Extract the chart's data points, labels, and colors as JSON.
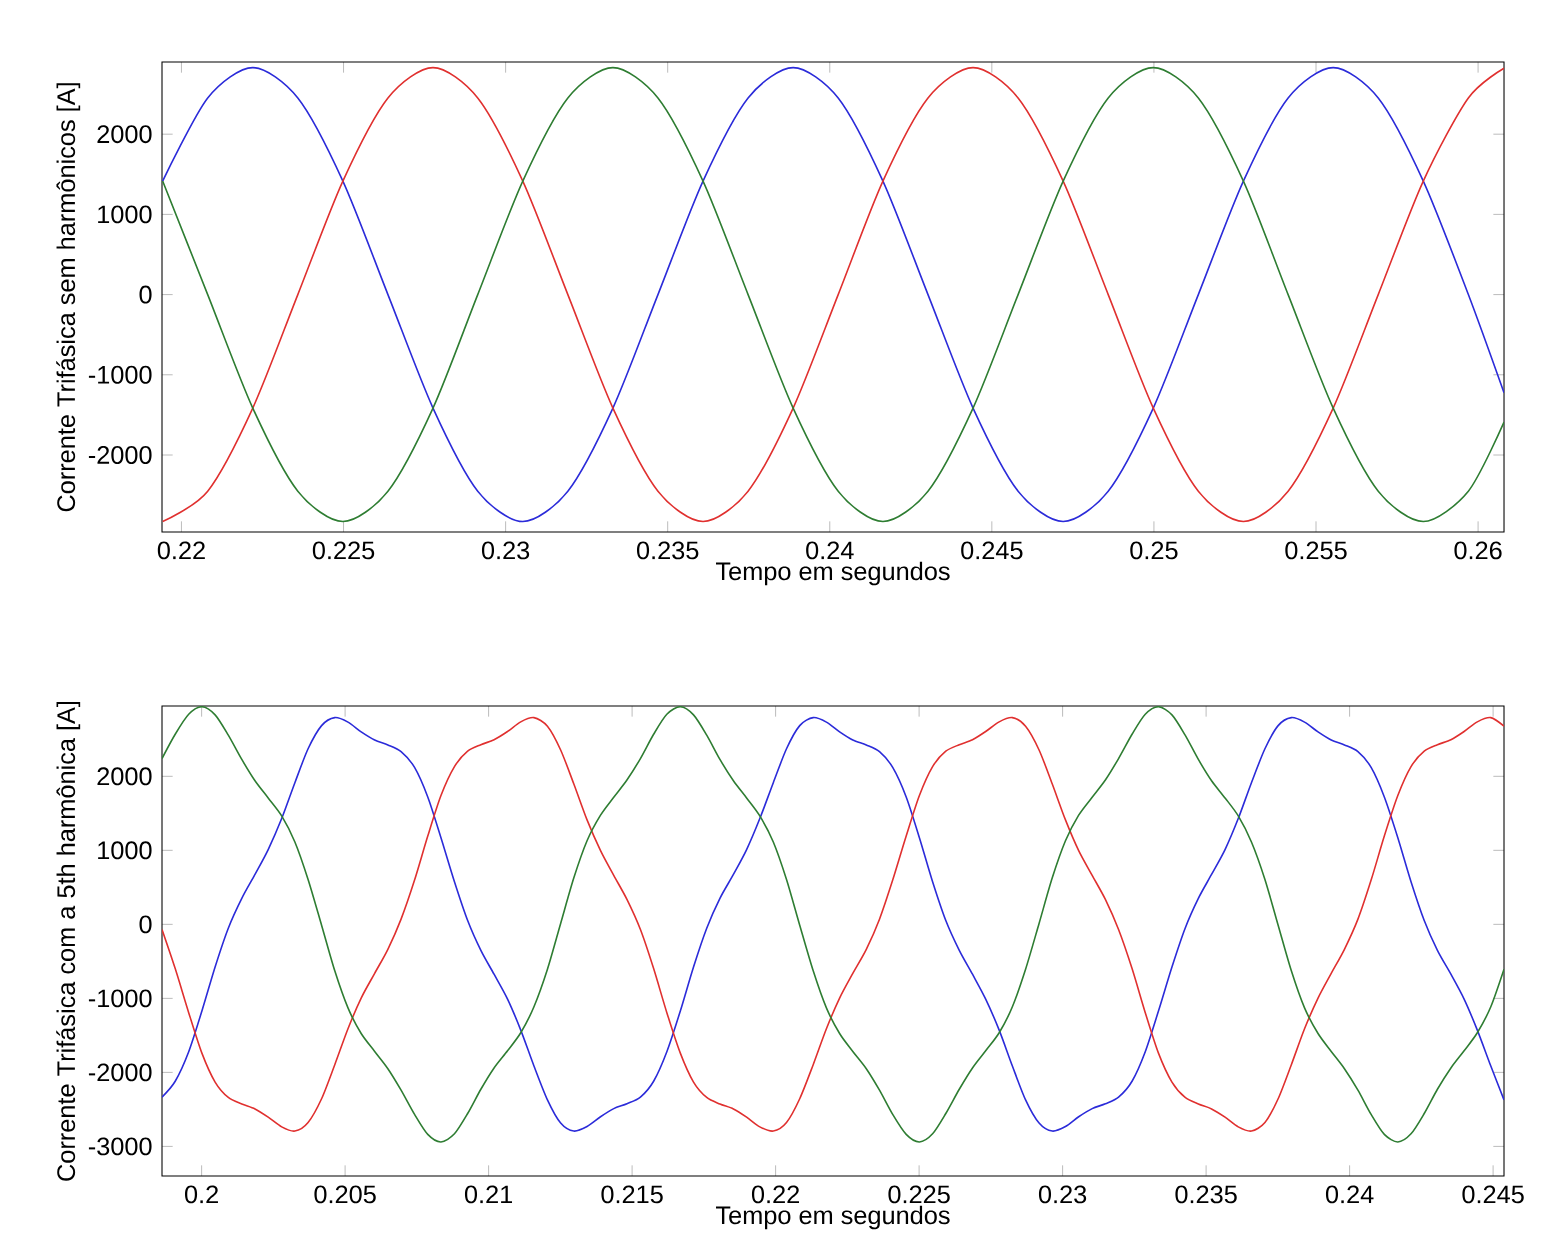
{
  "chart_data": [
    {
      "type": "line",
      "xlabel": "Tempo em segundos",
      "ylabel": "Corrente Trifásica sem harmônicos [A]",
      "x": [
        0.21942,
        0.22081,
        0.2222,
        0.22359,
        0.22498,
        0.22637,
        0.22776,
        0.22914,
        0.23053,
        0.23192,
        0.23331,
        0.2347,
        0.23609,
        0.23748,
        0.23887,
        0.24026,
        0.24164,
        0.24303,
        0.24442,
        0.24581,
        0.2472,
        0.24859,
        0.24998,
        0.25137,
        0.25276,
        0.25414,
        0.25553,
        0.25692,
        0.25831,
        0.2597,
        0.2608
      ],
      "series": [
        {
          "color": "#2b2bd9",
          "values": [
            1415,
            2451,
            2830,
            2451,
            1415,
            0,
            -1415,
            -2451,
            -2830,
            -2451,
            -1415,
            0,
            1415,
            2451,
            2830,
            2451,
            1415,
            0,
            -1415,
            -2451,
            -2830,
            -2451,
            -1415,
            0,
            1415,
            2451,
            2830,
            2451,
            1415,
            0,
            -1225
          ]
        },
        {
          "color": "#e0302f",
          "values": [
            -2830,
            -2451,
            -1415,
            0,
            1415,
            2451,
            2830,
            2451,
            1415,
            0,
            -1415,
            -2451,
            -2830,
            -2451,
            -1415,
            0,
            1415,
            2451,
            2830,
            2451,
            1415,
            0,
            -1415,
            -2451,
            -2830,
            -2451,
            -1415,
            0,
            1415,
            2451,
            2822
          ]
        },
        {
          "color": "#2e7d32",
          "values": [
            1415,
            0,
            -1415,
            -2451,
            -2830,
            -2451,
            -1415,
            0,
            1415,
            2451,
            2830,
            2451,
            1415,
            0,
            -1415,
            -2451,
            -2830,
            -2451,
            -1415,
            0,
            1415,
            2451,
            2830,
            2451,
            1415,
            0,
            -1415,
            -2451,
            -2830,
            -2451,
            -1591
          ]
        }
      ],
      "xlim": [
        0.2194,
        0.2608
      ],
      "ylim": [
        -2960,
        2900
      ],
      "xticks": [
        0.22,
        0.225,
        0.23,
        0.235,
        0.24,
        0.245,
        0.25,
        0.255,
        0.26
      ],
      "yticks": [
        -2000,
        -1000,
        0,
        1000,
        2000
      ]
    },
    {
      "type": "line",
      "xlabel": "Tempo em segundos",
      "ylabel": "Corrente Trifásica com a 5th harmônica [A]",
      "x": [
        0.19862,
        0.19908,
        0.19955,
        0.20001,
        0.20047,
        0.20093,
        0.2014,
        0.20186,
        0.20232,
        0.20279,
        0.20325,
        0.20371,
        0.20418,
        0.20464,
        0.2051,
        0.20556,
        0.20603,
        0.20649,
        0.20695,
        0.20742,
        0.20788,
        0.20834,
        0.20881,
        0.20927,
        0.20973,
        0.21019,
        0.21066,
        0.21112,
        0.21158,
        0.21205,
        0.21251,
        0.21297,
        0.21343,
        0.2139,
        0.21436,
        0.21482,
        0.21529,
        0.21575,
        0.21621,
        0.21668,
        0.21714,
        0.2176,
        0.21806,
        0.21853,
        0.21899,
        0.21945,
        0.21992,
        0.22038,
        0.22084,
        0.22131,
        0.22177,
        0.22223,
        0.22269,
        0.22316,
        0.22362,
        0.22408,
        0.22455,
        0.22501,
        0.22547,
        0.22593,
        0.2264,
        0.22686,
        0.22732,
        0.22779,
        0.22825,
        0.22871,
        0.22918,
        0.22964,
        0.2301,
        0.23056,
        0.23103,
        0.23149,
        0.23195,
        0.23242,
        0.23288,
        0.23334,
        0.23381,
        0.23427,
        0.23473,
        0.23519,
        0.23566,
        0.23612,
        0.23658,
        0.23705,
        0.23751,
        0.23797,
        0.23843,
        0.2389,
        0.23936,
        0.23982,
        0.24029,
        0.24075,
        0.24121,
        0.24168,
        0.24214,
        0.2426,
        0.24306,
        0.24353,
        0.24399,
        0.24445,
        0.24492,
        0.24538
      ],
      "series": [
        {
          "color": "#2b2bd9",
          "values": [
            -2334,
            -2120,
            -1721,
            -1171,
            -576,
            -52,
            351,
            674,
            1010,
            1429,
            1914,
            2372,
            2685,
            2793,
            2732,
            2600,
            2490,
            2424,
            2334,
            2120,
            1721,
            1171,
            576,
            52,
            -351,
            -674,
            -1010,
            -1429,
            -1914,
            -2372,
            -2685,
            -2793,
            -2732,
            -2600,
            -2490,
            -2424,
            -2334,
            -2120,
            -1721,
            -1171,
            -576,
            -52,
            351,
            674,
            1010,
            1429,
            1914,
            2372,
            2685,
            2793,
            2732,
            2600,
            2490,
            2424,
            2334,
            2120,
            1721,
            1171,
            576,
            52,
            -351,
            -674,
            -1010,
            -1429,
            -1914,
            -2372,
            -2685,
            -2793,
            -2732,
            -2600,
            -2490,
            -2424,
            -2334,
            -2120,
            -1721,
            -1171,
            -576,
            -52,
            351,
            674,
            1010,
            1429,
            1914,
            2372,
            2685,
            2793,
            2732,
            2600,
            2490,
            2424,
            2334,
            2120,
            1721,
            1171,
            576,
            52,
            -351,
            -674,
            -1010,
            -1429,
            -1914,
            -2372
          ]
        },
        {
          "color": "#e0302f",
          "values": [
            -70,
            -598,
            -1193,
            -1740,
            -2131,
            -2339,
            -2427,
            -2494,
            -2605,
            -2736,
            -2793,
            -2677,
            -2356,
            -1896,
            -1411,
            -996,
            -662,
            -337,
            70,
            598,
            1193,
            1740,
            2131,
            2339,
            2427,
            2494,
            2605,
            2736,
            2793,
            2677,
            2356,
            1896,
            1411,
            996,
            662,
            337,
            -70,
            -598,
            -1193,
            -1740,
            -2131,
            -2339,
            -2427,
            -2494,
            -2605,
            -2736,
            -2793,
            -2677,
            -2356,
            -1896,
            -1411,
            -996,
            -662,
            -337,
            70,
            598,
            1193,
            1740,
            2131,
            2339,
            2427,
            2494,
            2605,
            2736,
            2793,
            2677,
            2356,
            1896,
            1411,
            996,
            662,
            337,
            -70,
            -598,
            -1193,
            -1740,
            -2131,
            -2339,
            -2427,
            -2494,
            -2605,
            -2736,
            -2793,
            -2677,
            -2356,
            -1896,
            -1411,
            -996,
            -662,
            -337,
            70,
            598,
            1193,
            1740,
            2131,
            2339,
            2427,
            2494,
            2605,
            2736,
            2793,
            2677
          ]
        },
        {
          "color": "#2e7d32",
          "values": [
            2240,
            2568,
            2838,
            2940,
            2830,
            2556,
            2228,
            1940,
            1708,
            1465,
            1113,
            606,
            -12,
            -628,
            -1129,
            -1475,
            -1717,
            -1950,
            -2240,
            -2568,
            -2838,
            -2940,
            -2830,
            -2556,
            -2228,
            -1940,
            -1708,
            -1465,
            -1113,
            -606,
            12,
            628,
            1129,
            1475,
            1717,
            1950,
            2240,
            2568,
            2838,
            2940,
            2830,
            2556,
            2228,
            1940,
            1708,
            1465,
            1113,
            606,
            -12,
            -628,
            -1129,
            -1475,
            -1717,
            -1950,
            -2240,
            -2568,
            -2838,
            -2940,
            -2830,
            -2556,
            -2228,
            -1940,
            -1708,
            -1465,
            -1113,
            -606,
            12,
            628,
            1129,
            1475,
            1717,
            1950,
            2240,
            2568,
            2838,
            2940,
            2830,
            2556,
            2228,
            1940,
            1708,
            1465,
            1113,
            606,
            -12,
            -628,
            -1129,
            -1475,
            -1717,
            -1950,
            -2240,
            -2568,
            -2838,
            -2940,
            -2830,
            -2556,
            -2228,
            -1940,
            -1708,
            -1465,
            -1113,
            -606
          ]
        }
      ],
      "xlim": [
        0.19862,
        0.24538
      ],
      "ylim": [
        -3400,
        2950
      ],
      "xticks": [
        0.2,
        0.205,
        0.21,
        0.215,
        0.22,
        0.225,
        0.23,
        0.235,
        0.24,
        0.245
      ],
      "yticks": [
        -3000,
        -2000,
        -1000,
        0,
        1000,
        2000
      ]
    }
  ]
}
